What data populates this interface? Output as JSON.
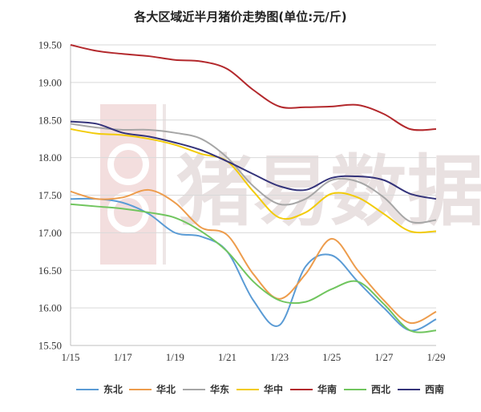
{
  "chart_data": {
    "type": "line",
    "title": "各大区域近半月猪价走势图(单位:元/斤)",
    "xlabel": "",
    "ylabel": "",
    "x": [
      "1/15",
      "1/16",
      "1/17",
      "1/18",
      "1/19",
      "1/20",
      "1/21",
      "1/22",
      "1/23",
      "1/24",
      "1/25",
      "1/26",
      "1/27",
      "1/28",
      "1/29"
    ],
    "x_tick_labels": [
      "1/15",
      "1/17",
      "1/19",
      "1/21",
      "1/23",
      "1/25",
      "1/27",
      "1/29"
    ],
    "ylim": [
      15.5,
      19.5
    ],
    "y_ticks": [
      15.5,
      16.0,
      16.5,
      17.0,
      17.5,
      18.0,
      18.5,
      19.0,
      19.5
    ],
    "y_tick_labels": [
      "15.50",
      "16.00",
      "16.50",
      "17.00",
      "17.50",
      "18.00",
      "18.50",
      "19.00",
      "19.50"
    ],
    "grid": true,
    "legend_position": "bottom",
    "series": [
      {
        "name": "东北",
        "color": "#5a9bd5",
        "values": [
          17.45,
          17.45,
          17.4,
          17.25,
          17.0,
          16.95,
          16.75,
          16.1,
          15.77,
          16.55,
          16.7,
          16.35,
          16.0,
          15.7,
          15.85
        ]
      },
      {
        "name": "华北",
        "color": "#ed9c4c",
        "values": [
          17.55,
          17.45,
          17.47,
          17.57,
          17.4,
          17.07,
          16.97,
          16.45,
          16.12,
          16.45,
          16.92,
          16.5,
          16.1,
          15.8,
          15.95
        ]
      },
      {
        "name": "华东",
        "color": "#a6a6a6",
        "values": [
          18.45,
          18.4,
          18.37,
          18.37,
          18.33,
          18.25,
          18.0,
          17.62,
          17.38,
          17.45,
          17.7,
          17.68,
          17.47,
          17.15,
          17.17
        ]
      },
      {
        "name": "华中",
        "color": "#f2cb0a",
        "values": [
          18.38,
          18.32,
          18.3,
          18.25,
          18.17,
          18.05,
          17.95,
          17.55,
          17.2,
          17.27,
          17.52,
          17.47,
          17.25,
          17.02,
          17.02
        ]
      },
      {
        "name": "华南",
        "color": "#b3282c",
        "values": [
          19.5,
          19.42,
          19.38,
          19.35,
          19.3,
          19.28,
          19.18,
          18.9,
          18.68,
          18.67,
          18.68,
          18.7,
          18.58,
          18.38,
          18.38
        ]
      },
      {
        "name": "西北",
        "color": "#70c55e",
        "values": [
          17.38,
          17.35,
          17.32,
          17.27,
          17.2,
          17.02,
          16.75,
          16.35,
          16.1,
          16.08,
          16.25,
          16.35,
          16.05,
          15.7,
          15.7
        ]
      },
      {
        "name": "西南",
        "color": "#34337a",
        "values": [
          18.48,
          18.45,
          18.33,
          18.28,
          18.2,
          18.1,
          17.95,
          17.78,
          17.62,
          17.57,
          17.73,
          17.75,
          17.7,
          17.52,
          17.45
        ]
      }
    ]
  },
  "watermark": {
    "text": "猪易数据",
    "logo_icon": "zhuyi-logo-icon"
  }
}
